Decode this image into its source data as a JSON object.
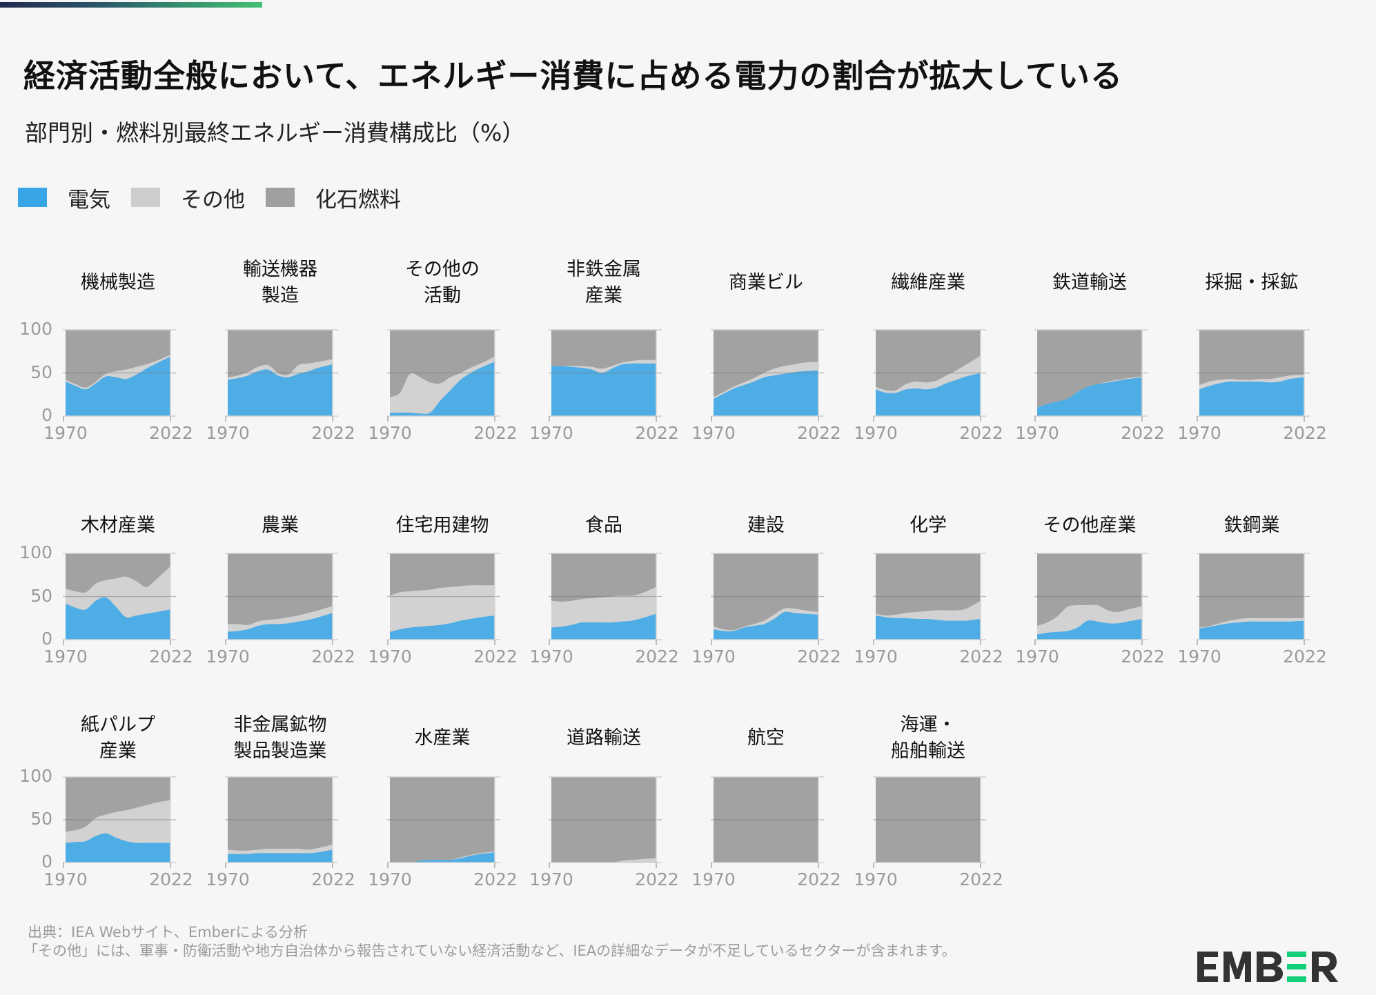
{
  "header": {
    "title": "経済活動全般において、エネルギー消費に占める電力の割合が拡大している",
    "subtitle": "部門別・燃料別最終エネルギー消費構成比（%）"
  },
  "legend": [
    {
      "label": "電気",
      "color": "#37a5e6"
    },
    {
      "label": "その他",
      "color": "#cdcdcd"
    },
    {
      "label": "化石燃料",
      "color": "#a0a0a0"
    }
  ],
  "footer": {
    "source": "出典：IEA Webサイト、Emberによる分析",
    "note": "「その他」には、軍事・防衛活動や地方自治体から報告されていない経済活動など、IEAの詳細なデータが不足しているセクターが含まれます。"
  },
  "logo": {
    "text": "EMBER",
    "accent_color": "#12d07a",
    "text_color": "#333333"
  },
  "chart_data": {
    "type": "area",
    "stacked": true,
    "title": "部門別・燃料別最終エネルギー消費構成比（%）",
    "ylim": [
      0,
      100
    ],
    "yticks": [
      "100",
      "50",
      "0"
    ],
    "xticks": [
      "1970",
      "2022"
    ],
    "x": [
      1970,
      1975,
      1980,
      1985,
      1990,
      1995,
      2000,
      2005,
      2010,
      2015,
      2022
    ],
    "series_names": [
      "電気",
      "その他",
      "化石燃料"
    ],
    "colors": {
      "electricity": "#4fade6",
      "other": "#d2d2d2",
      "fossil": "#a2a2a2"
    },
    "panels": [
      {
        "name": "機械製造",
        "electricity": [
          40,
          35,
          31,
          38,
          46,
          45,
          43,
          48,
          55,
          61,
          69
        ],
        "other": [
          2,
          2,
          2,
          2,
          3,
          7,
          11,
          9,
          5,
          3,
          2
        ]
      },
      {
        "name": "輸送機器\n製造",
        "electricity": [
          42,
          44,
          47,
          52,
          54,
          47,
          45,
          49,
          52,
          56,
          60
        ],
        "other": [
          3,
          3,
          4,
          5,
          5,
          3,
          3,
          10,
          9,
          7,
          6
        ]
      },
      {
        "name": "その他の\n活動",
        "electricity": [
          4,
          4,
          4,
          3,
          4,
          18,
          30,
          42,
          50,
          56,
          63
        ],
        "other": [
          18,
          23,
          45,
          42,
          35,
          20,
          15,
          8,
          6,
          5,
          6
        ]
      },
      {
        "name": "非鉄金属\n産業",
        "electricity": [
          58,
          58,
          57,
          56,
          54,
          50,
          55,
          60,
          61,
          61,
          61
        ],
        "other": [
          0,
          0,
          1,
          2,
          3,
          5,
          3,
          2,
          3,
          4,
          4
        ]
      },
      {
        "name": "商業ビル",
        "electricity": [
          20,
          26,
          32,
          36,
          40,
          45,
          47,
          49,
          51,
          52,
          53
        ],
        "other": [
          2,
          2,
          2,
          3,
          4,
          5,
          8,
          9,
          9,
          10,
          10
        ]
      },
      {
        "name": "繊維産業",
        "electricity": [
          31,
          27,
          27,
          31,
          32,
          31,
          33,
          38,
          42,
          46,
          50
        ],
        "other": [
          3,
          3,
          3,
          6,
          8,
          8,
          8,
          9,
          11,
          14,
          20
        ]
      },
      {
        "name": "鉄道輸送",
        "electricity": [
          10,
          14,
          17,
          20,
          28,
          34,
          37,
          39,
          41,
          43,
          45
        ],
        "other": [
          0,
          0,
          0,
          0,
          0,
          0,
          0,
          1,
          1,
          1,
          1
        ]
      },
      {
        "name": "採掘・採鉱",
        "electricity": [
          31,
          35,
          38,
          40,
          40,
          40,
          40,
          39,
          40,
          43,
          45
        ],
        "other": [
          5,
          5,
          4,
          3,
          2,
          2,
          3,
          4,
          5,
          4,
          3
        ]
      }
    ],
    "panels_row2": [
      {
        "name": "木材産業",
        "electricity": [
          42,
          37,
          35,
          45,
          49,
          38,
          26,
          28,
          30,
          32,
          35
        ],
        "other": [
          17,
          19,
          20,
          20,
          20,
          33,
          47,
          40,
          31,
          38,
          50
        ]
      },
      {
        "name": "農業",
        "electricity": [
          9,
          10,
          12,
          16,
          18,
          18,
          19,
          21,
          23,
          26,
          31
        ],
        "other": [
          9,
          8,
          5,
          5,
          5,
          6,
          7,
          7,
          8,
          8,
          8
        ]
      },
      {
        "name": "住宅用建物",
        "electricity": [
          9,
          12,
          14,
          15,
          16,
          17,
          19,
          22,
          24,
          26,
          28
        ],
        "other": [
          42,
          43,
          42,
          42,
          42,
          43,
          42,
          40,
          39,
          37,
          35
        ]
      },
      {
        "name": "食品",
        "electricity": [
          14,
          15,
          17,
          20,
          20,
          20,
          20,
          21,
          22,
          25,
          30
        ],
        "other": [
          31,
          29,
          28,
          27,
          28,
          29,
          30,
          30,
          29,
          29,
          31
        ]
      },
      {
        "name": "建設",
        "electricity": [
          12,
          10,
          10,
          14,
          16,
          18,
          24,
          32,
          31,
          30,
          29
        ],
        "other": [
          3,
          2,
          1,
          1,
          2,
          4,
          5,
          4,
          5,
          4,
          3
        ]
      },
      {
        "name": "化学",
        "electricity": [
          28,
          26,
          25,
          25,
          24,
          24,
          23,
          22,
          22,
          22,
          24
        ],
        "other": [
          2,
          2,
          4,
          6,
          8,
          9,
          11,
          12,
          12,
          14,
          21
        ]
      },
      {
        "name": "その他産業",
        "electricity": [
          6,
          8,
          9,
          10,
          14,
          22,
          21,
          19,
          19,
          21,
          24
        ],
        "other": [
          10,
          12,
          18,
          28,
          26,
          18,
          19,
          15,
          13,
          14,
          15
        ]
      },
      {
        "name": "鉄鋼業",
        "electricity": [
          13,
          15,
          17,
          19,
          20,
          21,
          21,
          21,
          21,
          21,
          22
        ],
        "other": [
          1,
          1,
          2,
          3,
          4,
          4,
          4,
          4,
          4,
          4,
          3
        ]
      }
    ],
    "panels_row3": [
      {
        "name": "紙パルプ\n産業",
        "electricity": [
          23,
          24,
          25,
          31,
          34,
          29,
          25,
          23,
          23,
          23,
          23
        ],
        "other": [
          13,
          14,
          17,
          21,
          22,
          30,
          36,
          41,
          44,
          47,
          50
        ]
      },
      {
        "name": "非金属鉱物\n製品製造業",
        "electricity": [
          10,
          10,
          10,
          11,
          11,
          11,
          11,
          11,
          11,
          12,
          15
        ],
        "other": [
          5,
          4,
          4,
          4,
          5,
          5,
          5,
          5,
          4,
          5,
          6
        ]
      },
      {
        "name": "水産業",
        "electricity": [
          0,
          0,
          0,
          2,
          3,
          3,
          3,
          5,
          8,
          10,
          12
        ],
        "other": [
          0,
          0,
          0,
          0,
          0,
          0,
          0,
          1,
          1,
          1,
          1
        ]
      },
      {
        "name": "道路輸送",
        "electricity": [
          0,
          0,
          0,
          0,
          0,
          0,
          0,
          0,
          0,
          0,
          0
        ],
        "other": [
          0,
          0,
          0,
          0,
          0,
          0,
          0,
          2,
          3,
          4,
          5
        ]
      },
      {
        "name": "航空",
        "electricity": [
          0,
          0,
          0,
          0,
          0,
          0,
          0,
          0,
          0,
          0,
          0
        ],
        "other": [
          0,
          0,
          0,
          0,
          0,
          0,
          0,
          0,
          0,
          0,
          0
        ]
      },
      {
        "name": "海運・\n船舶輸送",
        "electricity": [
          0,
          0,
          0,
          0,
          0,
          0,
          0,
          0,
          0,
          0,
          0
        ],
        "other": [
          0,
          0,
          0,
          0,
          0,
          0,
          0,
          0,
          0,
          0,
          0
        ]
      }
    ]
  }
}
